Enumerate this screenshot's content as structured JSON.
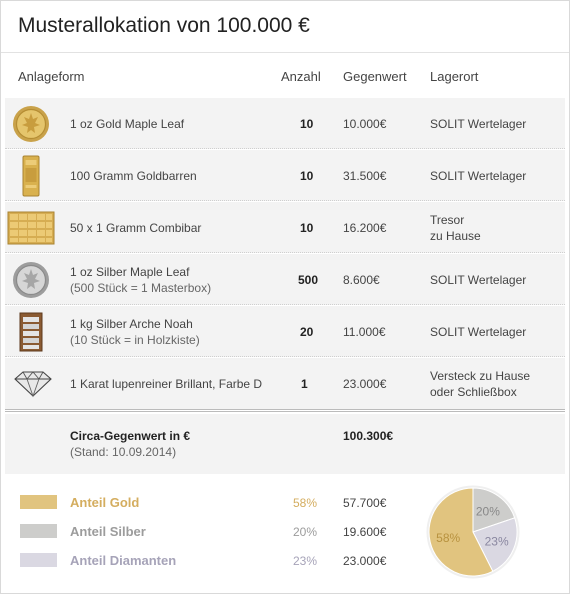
{
  "title": "Musterallokation von 100.000 €",
  "headers": {
    "anlageform": "Anlageform",
    "anzahl": "Anzahl",
    "gegenwert": "Gegenwert",
    "lagerort": "Lagerort"
  },
  "rows": [
    {
      "icon": "gold-coin-icon",
      "name": "1 oz Gold Maple Leaf",
      "name2": "",
      "qty": "10",
      "value": "10.000€",
      "loc1": "SOLIT Wertelager",
      "loc2": ""
    },
    {
      "icon": "gold-bar-icon",
      "name": "100 Gramm Goldbarren",
      "name2": "",
      "qty": "10",
      "value": "31.500€",
      "loc1": "SOLIT Wertelager",
      "loc2": ""
    },
    {
      "icon": "combibar-icon",
      "name": "50 x 1 Gramm Combibar",
      "name2": "",
      "qty": "10",
      "value": "16.200€",
      "loc1": "Tresor",
      "loc2": "zu Hause"
    },
    {
      "icon": "silver-coin-icon",
      "name": "1 oz Silber Maple Leaf",
      "name2": "(500 Stück = 1 Masterbox)",
      "qty": "500",
      "value": "8.600€",
      "loc1": "SOLIT Wertelager",
      "loc2": ""
    },
    {
      "icon": "silver-box-icon",
      "name": "1 kg Silber Arche Noah",
      "name2": "(10 Stück = in Holzkiste)",
      "qty": "20",
      "value": "11.000€",
      "loc1": "SOLIT Wertelager",
      "loc2": ""
    },
    {
      "icon": "diamond-icon",
      "name": "1 Karat lupenreiner Brillant, Farbe D",
      "name2": "",
      "qty": "1",
      "value": "23.000€",
      "loc1": "Versteck zu Hause",
      "loc2": "oder Schließbox"
    }
  ],
  "summary": {
    "label": "Circa-Gegenwert in €",
    "date": "(Stand: 10.09.2014)",
    "total": "100.300€"
  },
  "shares": [
    {
      "label": "Anteil Gold",
      "pct": "58%",
      "value": "57.700€",
      "color": "#e1c47f",
      "text_color": "#d4ad5f",
      "fraction": 0.58
    },
    {
      "label": "Anteil Silber",
      "pct": "20%",
      "value": "19.600€",
      "color": "#cdcdcb",
      "text_color": "#9c9c9c",
      "fraction": 0.2
    },
    {
      "label": "Anteil Diamanten",
      "pct": "23%",
      "value": "23.000€",
      "color": "#dad8e2",
      "text_color": "#a6a3b8",
      "fraction": 0.23
    }
  ]
}
